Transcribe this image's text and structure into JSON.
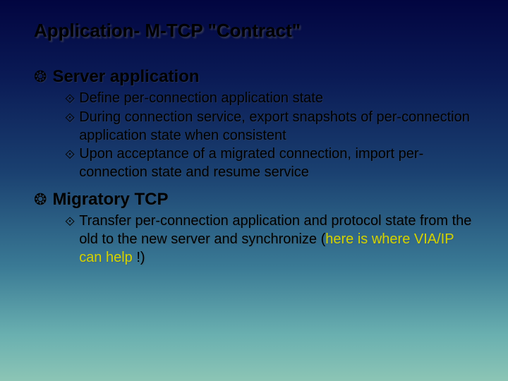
{
  "slide": {
    "title": "Application- M-TCP \"Contract\"",
    "bullet_main_glyph": "❂",
    "bullet_sub_glyph": "⟐",
    "highlight_color": "#d4d400",
    "text_color": "#000000",
    "background_gradient": [
      "#020540",
      "#0a1a55",
      "#1a4070",
      "#3a7a95",
      "#6ab0b0",
      "#8cc5b5"
    ],
    "title_fontsize": 26,
    "heading_fontsize": 24,
    "body_fontsize": 20,
    "sections": [
      {
        "heading": "Server application",
        "items": [
          {
            "text": "Define per-connection application state"
          },
          {
            "text": "During connection service, export snapshots of per-connection application state when consistent"
          },
          {
            "text": "Upon acceptance of a migrated connection, import per-connection state and resume service"
          }
        ]
      },
      {
        "heading": "Migratory TCP",
        "items": [
          {
            "text_pre": "Transfer per-connection application and protocol state from the old to the new  server and synchronize (",
            "text_highlight": "here is where VIA/IP can help",
            "text_post": " !)"
          }
        ]
      }
    ]
  }
}
